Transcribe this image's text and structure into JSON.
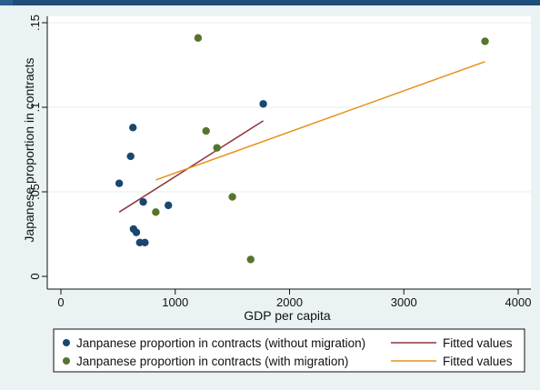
{
  "chart_data": {
    "type": "scatter",
    "xlabel": "GDP per capita",
    "ylabel": "Japanese proportion in contracts",
    "xlim": [
      0,
      4000
    ],
    "ylim": [
      0,
      0.15
    ],
    "xticks": [
      0,
      1000,
      2000,
      3000,
      4000
    ],
    "xtick_labels": [
      "0",
      "1000",
      "2000",
      "3000",
      "4000"
    ],
    "yticks": [
      0,
      0.05,
      0.1,
      0.15
    ],
    "ytick_labels": [
      "0",
      ".05",
      ".1",
      ".15"
    ],
    "grid": true,
    "legend_position": "bottom",
    "series": [
      {
        "name": "Janpanese proportion in contracts (without migration)",
        "kind": "scatter",
        "color": "#1a476f",
        "points": [
          [
            510,
            0.055
          ],
          [
            610,
            0.071
          ],
          [
            630,
            0.088
          ],
          [
            635,
            0.028
          ],
          [
            660,
            0.026
          ],
          [
            690,
            0.02
          ],
          [
            720,
            0.044
          ],
          [
            735,
            0.02
          ],
          [
            940,
            0.042
          ],
          [
            1770,
            0.102
          ]
        ]
      },
      {
        "name": "Janpanese proportion in contracts (with migration)",
        "kind": "scatter",
        "color": "#55752f",
        "points": [
          [
            830,
            0.038
          ],
          [
            1200,
            0.141
          ],
          [
            1270,
            0.086
          ],
          [
            1365,
            0.076
          ],
          [
            1500,
            0.047
          ],
          [
            1660,
            0.01
          ],
          [
            3710,
            0.139
          ]
        ]
      },
      {
        "name": "Fitted values",
        "kind": "line",
        "color": "#90353b",
        "points": [
          [
            510,
            0.038
          ],
          [
            1770,
            0.092
          ]
        ]
      },
      {
        "name": "Fitted values",
        "kind": "line",
        "color": "#e8911a",
        "points": [
          [
            830,
            0.057
          ],
          [
            3710,
            0.127
          ]
        ]
      }
    ]
  }
}
